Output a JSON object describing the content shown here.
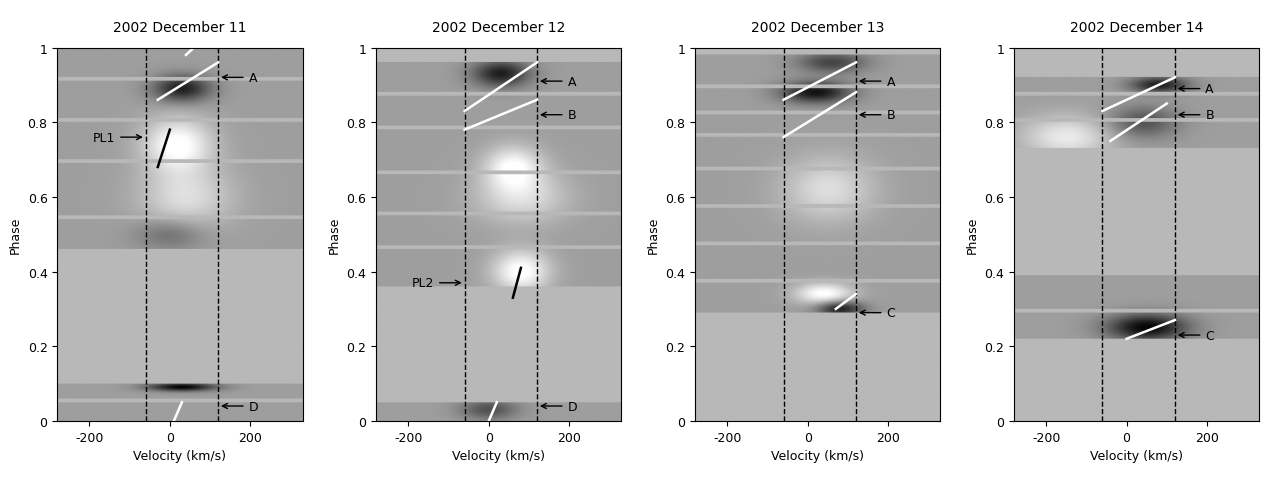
{
  "chart_data": [
    {
      "type": "trailed_spectrum",
      "title": "2002 December 11",
      "xlabel": "Velocity (km/s)",
      "ylabel": "Phase",
      "xlim": [
        -280,
        330
      ],
      "xticks": [
        -200,
        0,
        200
      ],
      "ylim": [
        0,
        1
      ],
      "yticks": [
        0,
        0.2,
        0.4,
        0.6,
        0.8,
        1
      ],
      "reference_velocities": [
        -60,
        120
      ],
      "strips": [
        [
          0.0,
          0.05
        ],
        [
          0.06,
          0.1
        ],
        [
          0.46,
          0.54
        ],
        [
          0.55,
          0.69
        ],
        [
          0.7,
          0.8
        ],
        [
          0.81,
          0.91
        ],
        [
          0.92,
          1.0
        ]
      ],
      "features": [
        {
          "velocity": 30,
          "phase": 0.89,
          "width": 50,
          "height": 0.025,
          "amplitude": -0.5
        },
        {
          "velocity": 20,
          "phase": 0.74,
          "width": 60,
          "height": 0.05,
          "amplitude": 0.4
        },
        {
          "velocity": 30,
          "phase": 0.09,
          "width": 60,
          "height": 0.008,
          "amplitude": -0.6
        },
        {
          "velocity": 40,
          "phase": 0.6,
          "width": 80,
          "height": 0.06,
          "amplitude": 0.25
        },
        {
          "velocity": 0,
          "phase": 0.5,
          "width": 60,
          "height": 0.03,
          "amplitude": -0.2
        }
      ],
      "lines": [
        {
          "start": [
            -30,
            0.86
          ],
          "end": [
            120,
            0.96
          ],
          "color": "white"
        },
        {
          "start": [
            40,
            0.98
          ],
          "end": [
            60,
            1.0
          ],
          "color": "white"
        },
        {
          "start": [
            -30,
            0.68
          ],
          "end": [
            0,
            0.78
          ],
          "color": "black"
        },
        {
          "start": [
            10,
            0.0
          ],
          "end": [
            30,
            0.05
          ],
          "color": "white"
        }
      ],
      "labels": [
        {
          "text": "A",
          "velocity": 120,
          "phase": 0.92
        },
        {
          "text": "PL1",
          "velocity": -60,
          "phase": 0.76
        },
        {
          "text": "D",
          "velocity": 120,
          "phase": 0.04
        }
      ]
    },
    {
      "type": "trailed_spectrum",
      "title": "2002 December 12",
      "xlabel": "Velocity (km/s)",
      "ylabel": "Phase",
      "xlim": [
        -280,
        330
      ],
      "xticks": [
        -200,
        0,
        200
      ],
      "ylim": [
        0,
        1
      ],
      "yticks": [
        0,
        0.2,
        0.4,
        0.6,
        0.8,
        1
      ],
      "reference_velocities": [
        -60,
        120
      ],
      "strips": [
        [
          0.0,
          0.05
        ],
        [
          0.36,
          0.46
        ],
        [
          0.47,
          0.55
        ],
        [
          0.56,
          0.66
        ],
        [
          0.67,
          0.78
        ],
        [
          0.79,
          0.87
        ],
        [
          0.88,
          0.96
        ]
      ],
      "features": [
        {
          "velocity": 30,
          "phase": 0.93,
          "width": 50,
          "height": 0.025,
          "amplitude": -0.5
        },
        {
          "velocity": 80,
          "phase": 0.4,
          "width": 50,
          "height": 0.04,
          "amplitude": 0.4
        },
        {
          "velocity": 60,
          "phase": 0.68,
          "width": 50,
          "height": 0.04,
          "amplitude": 0.35
        },
        {
          "velocity": 80,
          "phase": 0.6,
          "width": 80,
          "height": 0.05,
          "amplitude": 0.25
        },
        {
          "velocity": 0,
          "phase": 0.03,
          "width": 50,
          "height": 0.02,
          "amplitude": -0.3
        }
      ],
      "lines": [
        {
          "start": [
            -60,
            0.83
          ],
          "end": [
            120,
            0.96
          ],
          "color": "white"
        },
        {
          "start": [
            -60,
            0.78
          ],
          "end": [
            120,
            0.86
          ],
          "color": "white"
        },
        {
          "start": [
            60,
            0.33
          ],
          "end": [
            80,
            0.41
          ],
          "color": "black"
        },
        {
          "start": [
            0,
            0.0
          ],
          "end": [
            20,
            0.05
          ],
          "color": "white"
        }
      ],
      "labels": [
        {
          "text": "A",
          "velocity": 120,
          "phase": 0.91
        },
        {
          "text": "B",
          "velocity": 120,
          "phase": 0.82
        },
        {
          "text": "PL2",
          "velocity": -60,
          "phase": 0.37
        },
        {
          "text": "D",
          "velocity": 120,
          "phase": 0.04
        }
      ]
    },
    {
      "type": "trailed_spectrum",
      "title": "2002 December 13",
      "xlabel": "Velocity (km/s)",
      "ylabel": "Phase",
      "xlim": [
        -280,
        330
      ],
      "xticks": [
        -200,
        0,
        200
      ],
      "ylim": [
        0,
        1
      ],
      "yticks": [
        0,
        0.2,
        0.4,
        0.6,
        0.8,
        1
      ],
      "reference_velocities": [
        -60,
        120
      ],
      "strips": [
        [
          0.29,
          0.37
        ],
        [
          0.38,
          0.47
        ],
        [
          0.48,
          0.57
        ],
        [
          0.58,
          0.67
        ],
        [
          0.68,
          0.76
        ],
        [
          0.77,
          0.82
        ],
        [
          0.83,
          0.89
        ],
        [
          0.9,
          0.98
        ]
      ],
      "features": [
        {
          "velocity": 20,
          "phase": 0.88,
          "width": 60,
          "height": 0.02,
          "amplitude": -0.55
        },
        {
          "velocity": 80,
          "phase": 0.3,
          "width": 40,
          "height": 0.015,
          "amplitude": -0.5
        },
        {
          "velocity": 40,
          "phase": 0.34,
          "width": 50,
          "height": 0.02,
          "amplitude": 0.4
        },
        {
          "velocity": 60,
          "phase": 0.96,
          "width": 60,
          "height": 0.02,
          "amplitude": -0.35
        },
        {
          "velocity": 50,
          "phase": 0.62,
          "width": 80,
          "height": 0.06,
          "amplitude": 0.25
        }
      ],
      "lines": [
        {
          "start": [
            -60,
            0.86
          ],
          "end": [
            120,
            0.96
          ],
          "color": "white"
        },
        {
          "start": [
            -60,
            0.76
          ],
          "end": [
            120,
            0.88
          ],
          "color": "white"
        },
        {
          "start": [
            70,
            0.3
          ],
          "end": [
            120,
            0.34
          ],
          "color": "white"
        }
      ],
      "labels": [
        {
          "text": "A",
          "velocity": 120,
          "phase": 0.91
        },
        {
          "text": "B",
          "velocity": 120,
          "phase": 0.82
        },
        {
          "text": "C",
          "velocity": 120,
          "phase": 0.29
        }
      ]
    },
    {
      "type": "trailed_spectrum",
      "title": "2002 December 14",
      "xlabel": "Velocity (km/s)",
      "ylabel": "Phase",
      "xlim": [
        -280,
        330
      ],
      "xticks": [
        -200,
        0,
        200
      ],
      "ylim": [
        0,
        1
      ],
      "yticks": [
        0,
        0.2,
        0.4,
        0.6,
        0.8,
        1
      ],
      "reference_velocities": [
        -60,
        120
      ],
      "strips": [
        [
          0.22,
          0.29
        ],
        [
          0.3,
          0.39
        ],
        [
          0.73,
          0.8
        ],
        [
          0.81,
          0.87
        ],
        [
          0.88,
          0.92
        ]
      ],
      "features": [
        {
          "velocity": 50,
          "phase": 0.25,
          "width": 70,
          "height": 0.025,
          "amplitude": -0.6
        },
        {
          "velocity": 80,
          "phase": 0.9,
          "width": 50,
          "height": 0.015,
          "amplitude": -0.5
        },
        {
          "velocity": 40,
          "phase": 0.8,
          "width": 60,
          "height": 0.03,
          "amplitude": -0.3
        },
        {
          "velocity": -150,
          "phase": 0.76,
          "width": 80,
          "height": 0.04,
          "amplitude": 0.3
        }
      ],
      "lines": [
        {
          "start": [
            -60,
            0.83
          ],
          "end": [
            120,
            0.92
          ],
          "color": "white"
        },
        {
          "start": [
            -40,
            0.75
          ],
          "end": [
            100,
            0.85
          ],
          "color": "white"
        },
        {
          "start": [
            0,
            0.22
          ],
          "end": [
            120,
            0.27
          ],
          "color": "white"
        }
      ],
      "labels": [
        {
          "text": "A",
          "velocity": 120,
          "phase": 0.89
        },
        {
          "text": "B",
          "velocity": 120,
          "phase": 0.82
        },
        {
          "text": "C",
          "velocity": 120,
          "phase": 0.23
        }
      ]
    }
  ]
}
